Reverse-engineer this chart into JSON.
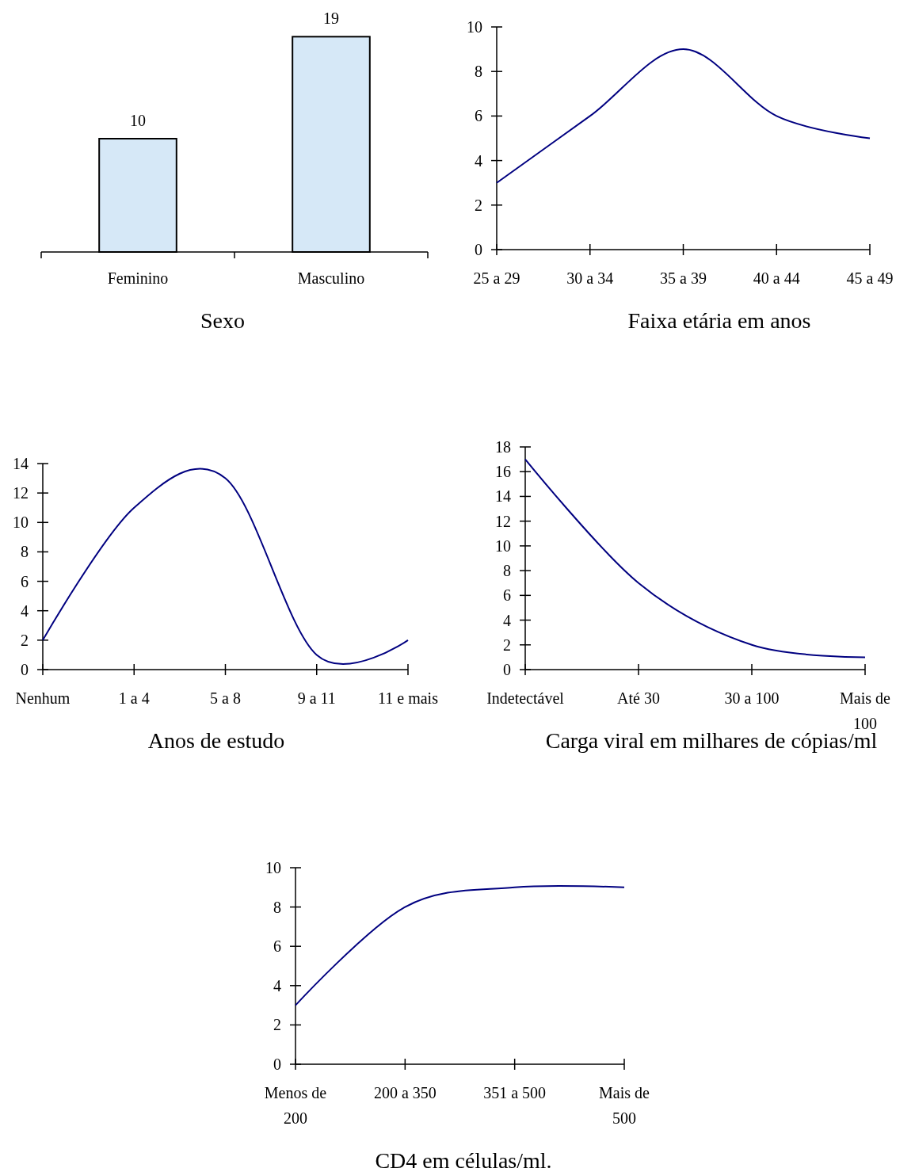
{
  "chart_data": [
    {
      "type": "bar",
      "xlabel": "Sexo",
      "categories": [
        "Feminino",
        "Masculino"
      ],
      "values": [
        10,
        19
      ],
      "color": "#d6e8f7",
      "data_labels": true
    },
    {
      "type": "line",
      "xlabel": "Faixa etária em anos",
      "categories": [
        "25 a 29",
        "30 a 34",
        "35 a 39",
        "40 a 44",
        "45 a 49"
      ],
      "values": [
        3,
        6,
        9,
        6,
        5
      ],
      "color": "#000080",
      "ylim": [
        0,
        10
      ],
      "yticks": [
        0,
        2,
        4,
        6,
        8,
        10
      ]
    },
    {
      "type": "line",
      "xlabel": "Anos de estudo",
      "categories": [
        "Nenhum",
        "1 a 4",
        "5 a 8",
        "9 a 11",
        "11 e mais"
      ],
      "values": [
        2,
        11,
        13,
        1,
        2
      ],
      "color": "#000080",
      "ylim": [
        0,
        14
      ],
      "yticks": [
        0,
        2,
        4,
        6,
        8,
        10,
        12,
        14
      ]
    },
    {
      "type": "line",
      "xlabel": "Carga viral em milhares de cópias/ml",
      "categories": [
        "Indetectável",
        "Até 30",
        "30 a 100",
        "Mais de 100"
      ],
      "values": [
        17,
        7,
        2,
        1
      ],
      "color": "#000080",
      "ylim": [
        0,
        18
      ],
      "yticks": [
        0,
        2,
        4,
        6,
        8,
        10,
        12,
        14,
        16,
        18
      ]
    },
    {
      "type": "line",
      "xlabel": "CD4 em células/ml.",
      "categories": [
        "Menos de 200",
        "200 a 350",
        "351 a 500",
        "Mais de 500"
      ],
      "values": [
        3,
        8,
        9,
        9
      ],
      "color": "#000080",
      "ylim": [
        0,
        10
      ],
      "yticks": [
        0,
        2,
        4,
        6,
        8,
        10
      ]
    }
  ]
}
